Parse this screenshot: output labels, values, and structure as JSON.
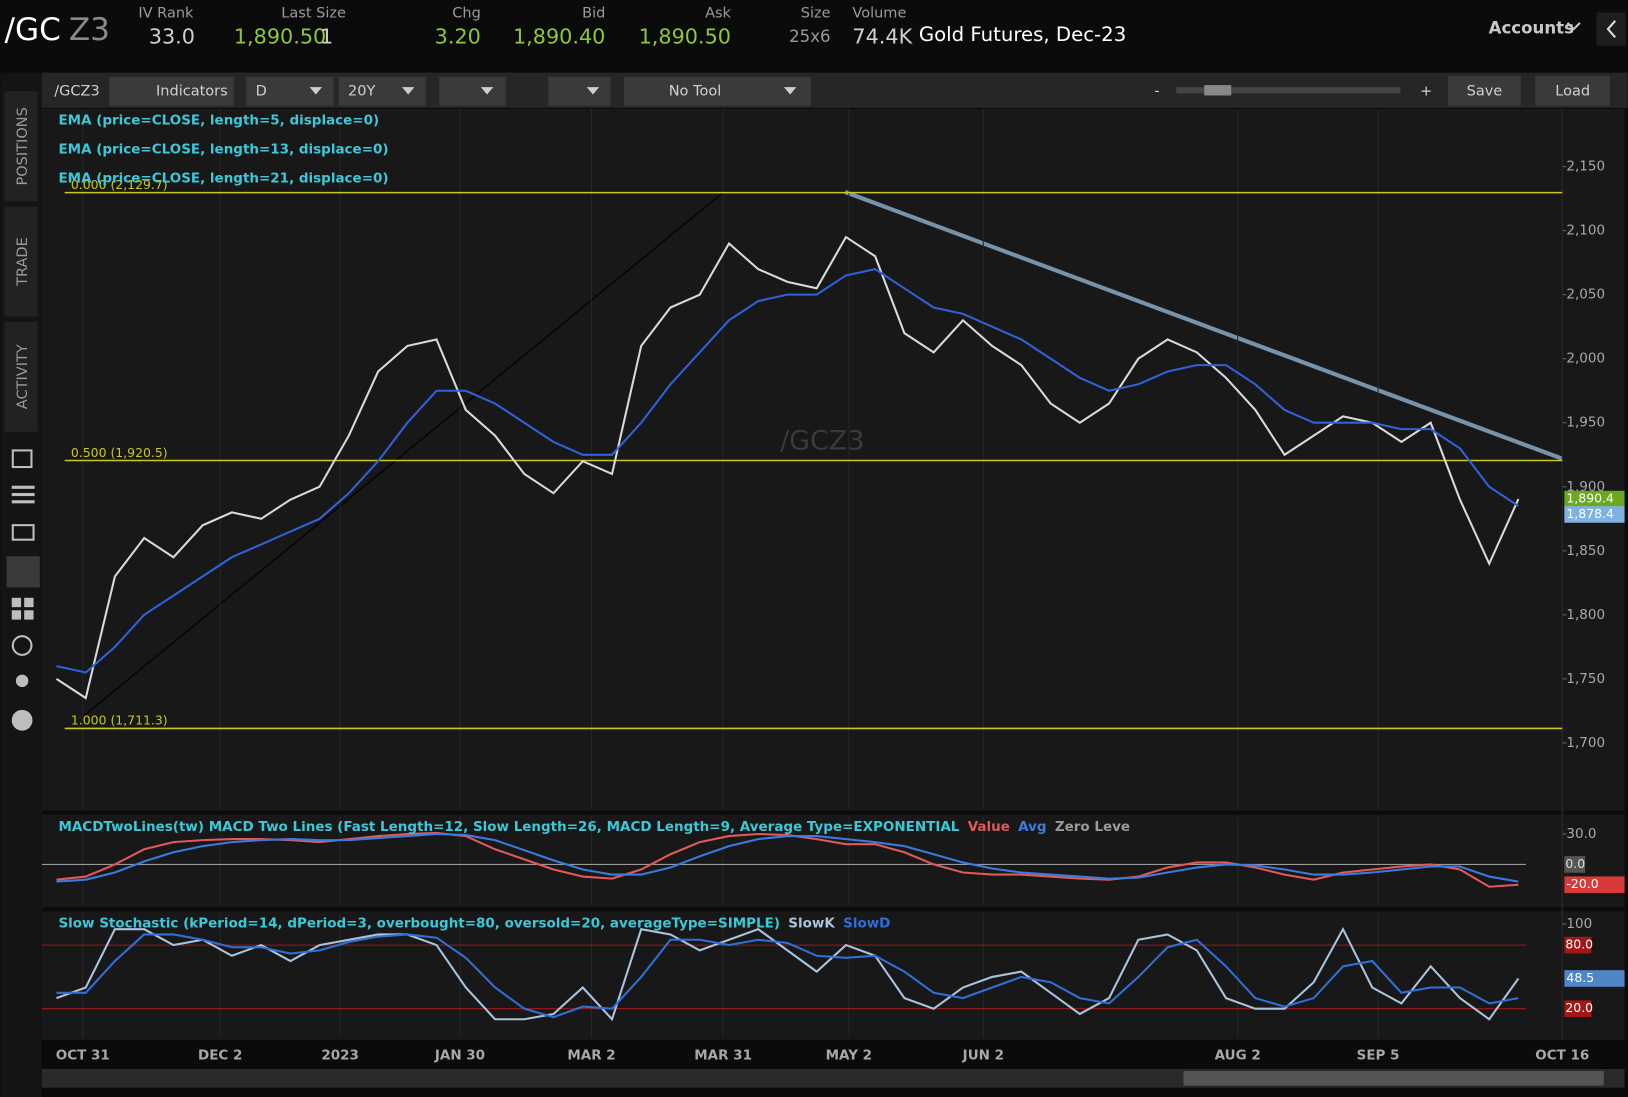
{
  "header": {
    "symbol": "/GC",
    "symbol_suffix": "Z3",
    "fields": [
      {
        "label": "IV Rank",
        "value": "33.0"
      },
      {
        "label": "Last Size",
        "value": "1,890.50",
        "extra": "1"
      },
      {
        "label": "Chg",
        "value": "3.20"
      },
      {
        "label": "Bid",
        "value": "1,890.40"
      },
      {
        "label": "Ask",
        "value": "1,890.50"
      },
      {
        "label": "Size",
        "value": "25x6"
      },
      {
        "label": "Volume",
        "value": "74.4K"
      }
    ],
    "description": "Gold Futures, Dec-23",
    "accounts": "Accounts"
  },
  "toolbar": {
    "symbol": "/GCZ3",
    "indicators": "Indicators",
    "aggregation": "D",
    "timeframe": "20Y",
    "tool": "No Tool",
    "zoom_out": "-",
    "zoom_in": "+",
    "save": "Save",
    "load": "Load"
  },
  "side_tabs": [
    "POSITIONS",
    "TRADE",
    "ACTIVITY"
  ],
  "chart_data": [
    {
      "type": "line",
      "study_labels": [
        "EMA (price=CLOSE, length=5, displace=0)",
        "EMA (price=CLOSE, length=13, displace=0)"
      ],
      "xlim": [
        -0.5,
        51.5
      ],
      "xticks": [
        {
          "value": 0.9,
          "label": "OCT 31"
        },
        {
          "value": 5.6,
          "label": "DEC 2"
        },
        {
          "value": 9.7,
          "label": "2023"
        },
        {
          "value": 13.8,
          "label": "JAN 30"
        },
        {
          "value": 18.3,
          "label": "MAR 2"
        },
        {
          "value": 22.8,
          "label": "MAR 31"
        },
        {
          "value": 27.1,
          "label": "MAY 2"
        },
        {
          "value": 31.7,
          "label": "JUN 2"
        },
        {
          "value": 40.4,
          "label": "AUG 2"
        },
        {
          "value": 45.2,
          "label": "SEP 5"
        },
        {
          "value": 51.5,
          "label": "OCT 16"
        }
      ],
      "ylim": [
        1648,
        2195
      ],
      "yticks": [
        {
          "value": 1700,
          "label": "1,700"
        },
        {
          "value": 1750,
          "label": "1,750"
        },
        {
          "value": 1800,
          "label": "1,800"
        },
        {
          "value": 1850,
          "label": "1,850"
        },
        {
          "value": 1900,
          "label": "1,900"
        },
        {
          "value": 1950,
          "label": "1,950"
        },
        {
          "value": 2000,
          "label": "2,000"
        },
        {
          "value": 2050,
          "label": "2,050"
        },
        {
          "value": 2100,
          "label": "2,100"
        },
        {
          "value": 2150,
          "label": "2,150"
        }
      ],
      "series": [
        {
          "name": "/GCZ3",
          "color": "#d9d9d9",
          "values": [
            1750,
            1735,
            1830,
            1860,
            1845,
            1870,
            1880,
            1875,
            1890,
            1900,
            1940,
            1990,
            2010,
            2015,
            1960,
            1940,
            1910,
            1895,
            1920,
            1910,
            2010,
            2040,
            2050,
            2090,
            2070,
            2060,
            2055,
            2095,
            2080,
            2020,
            2005,
            2030,
            2010,
            1995,
            1965,
            1950,
            1965,
            2000,
            2015,
            2005,
            1985,
            1960,
            1925,
            1940,
            1955,
            1950,
            1935,
            1950,
            1890,
            1840,
            1890.4
          ]
        },
        {
          "name": "EMA (price=CLOSE, length=21, displace=0)",
          "color": "#2f62d6",
          "values": [
            1760,
            1755,
            1775,
            1800,
            1815,
            1830,
            1845,
            1855,
            1865,
            1875,
            1895,
            1920,
            1950,
            1975,
            1975,
            1965,
            1950,
            1935,
            1925,
            1925,
            1950,
            1980,
            2005,
            2030,
            2045,
            2050,
            2050,
            2065,
            2070,
            2055,
            2040,
            2035,
            2025,
            2015,
            2000,
            1985,
            1975,
            1980,
            1990,
            1995,
            1995,
            1980,
            1960,
            1950,
            1950,
            1950,
            1945,
            1945,
            1930,
            1900,
            1885
          ]
        }
      ],
      "fib_levels": [
        {
          "label": "0.000 (2,129.7)",
          "value": 2129.7
        },
        {
          "label": "0.500 (1,920.5)",
          "value": 1920.5
        },
        {
          "label": "1.000 (1,711.3)",
          "value": 1711.3
        }
      ],
      "fib_color": "#c8c81e",
      "badges": [
        {
          "label": "1,890.4",
          "value": 1890.4,
          "color": "#6aa820"
        },
        {
          "label": "1,878.4",
          "value": 1878.4,
          "color": "#7fb2e0"
        }
      ]
    },
    {
      "type": "line",
      "title": "MACDTwoLines(tw) MACD Two Lines (Fast Length=12, Slow Length=26, MACD Length=9, Average Type=EXPONENTIAL",
      "ylim": [
        -40,
        47
      ],
      "yticks": [
        {
          "value": 30,
          "label": "30.0"
        }
      ],
      "series": [
        {
          "name": "Value",
          "color": "#e05a5a",
          "values": [
            -15,
            -12,
            0,
            15,
            22,
            24,
            25,
            25,
            24,
            22,
            25,
            28,
            30,
            31,
            28,
            15,
            5,
            -5,
            -12,
            -14,
            -5,
            10,
            22,
            28,
            30,
            29,
            25,
            20,
            20,
            12,
            0,
            -8,
            -10,
            -10,
            -12,
            -14,
            -15,
            -12,
            -3,
            2,
            2,
            -3,
            -10,
            -15,
            -8,
            -5,
            -2,
            0,
            -5,
            -22,
            -20
          ]
        },
        {
          "name": "Avg",
          "color": "#3a7be0",
          "values": [
            -17,
            -15,
            -8,
            3,
            12,
            18,
            22,
            24,
            25,
            24,
            24,
            26,
            28,
            30,
            29,
            24,
            14,
            4,
            -5,
            -10,
            -10,
            -3,
            8,
            18,
            25,
            28,
            28,
            25,
            22,
            18,
            10,
            2,
            -4,
            -8,
            -10,
            -12,
            -14,
            -13,
            -8,
            -3,
            0,
            -1,
            -5,
            -10,
            -10,
            -8,
            -5,
            -2,
            -2,
            -12,
            -17
          ]
        }
      ],
      "zero_line": {
        "name": "Zero Leve",
        "value": 0,
        "label": "0.0",
        "color": "#9a9a9a"
      },
      "badges": [
        {
          "label": "-20.0",
          "value": -20,
          "color": "#d83a3a"
        }
      ]
    },
    {
      "type": "line",
      "title": "Slow Stochastic (kPeriod=14, dPeriod=3, overbought=80, oversold=20, averageType=SIMPLE)",
      "ylim": [
        -7.5,
        110
      ],
      "yticks": [
        100
      ],
      "series": [
        {
          "name": "SlowK",
          "color": "#a9c4dc",
          "values": [
            30,
            40,
            95,
            95,
            80,
            85,
            70,
            80,
            65,
            80,
            85,
            90,
            90,
            80,
            40,
            10,
            10,
            15,
            40,
            10,
            95,
            90,
            75,
            85,
            95,
            75,
            55,
            80,
            70,
            30,
            20,
            40,
            50,
            55,
            35,
            15,
            30,
            85,
            90,
            75,
            30,
            20,
            20,
            45,
            95,
            40,
            25,
            60,
            30,
            10,
            48.5
          ]
        },
        {
          "name": "SlowD",
          "color": "#2f6fd6",
          "values": [
            35,
            35,
            65,
            90,
            90,
            85,
            78,
            78,
            72,
            75,
            83,
            88,
            90,
            87,
            68,
            40,
            20,
            12,
            22,
            20,
            50,
            85,
            85,
            80,
            85,
            82,
            70,
            68,
            70,
            55,
            35,
            30,
            40,
            50,
            45,
            30,
            25,
            50,
            78,
            85,
            60,
            30,
            22,
            30,
            60,
            65,
            35,
            40,
            40,
            25,
            30
          ]
        }
      ],
      "levels": [
        {
          "label": "80.0",
          "value": 80
        },
        {
          "label": "20.0",
          "value": 20
        }
      ],
      "level_color": "#a01818",
      "badges": [
        {
          "label": "48.5",
          "value": 48.5,
          "color": "#4f86c6"
        }
      ]
    }
  ]
}
